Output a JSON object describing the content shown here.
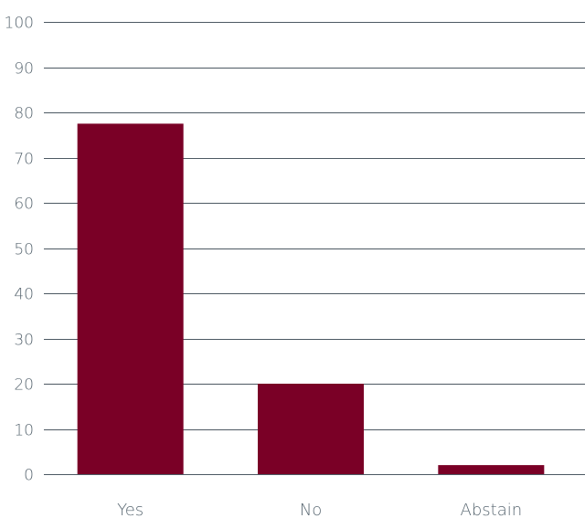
{
  "chart_data": {
    "type": "bar",
    "title": "",
    "xlabel": "",
    "ylabel": "",
    "categories": [
      "Yes",
      "No",
      "Abstain"
    ],
    "values": [
      77.5,
      20,
      2
    ],
    "ylim": [
      0,
      100
    ],
    "yticks": [
      0,
      10,
      20,
      30,
      40,
      50,
      60,
      70,
      80,
      90,
      100
    ],
    "grid": true,
    "legend": "none",
    "colors": {
      "bar": "#7a0026",
      "grid": "#4d5963",
      "text": "#5a6872"
    }
  }
}
